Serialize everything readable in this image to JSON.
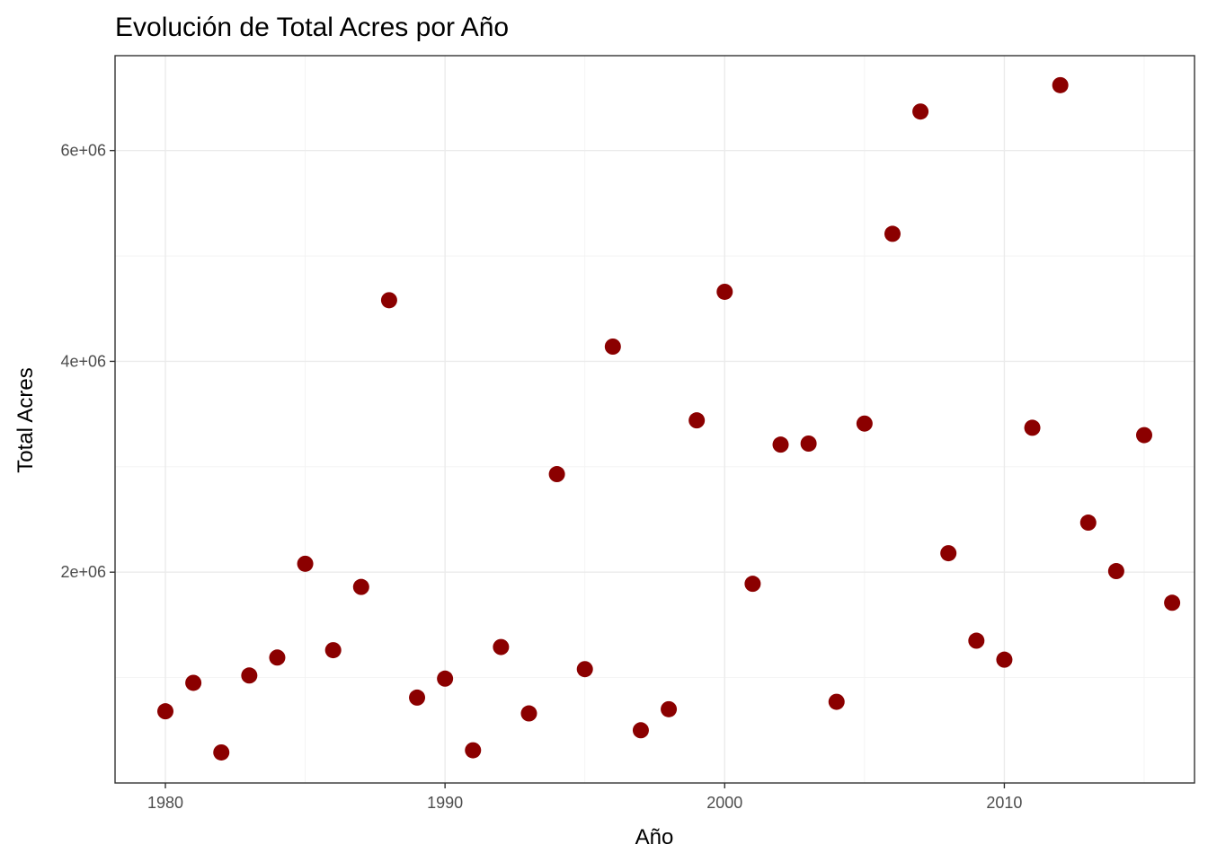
{
  "chart_data": {
    "type": "scatter",
    "title": "Evolución de Total Acres por Año",
    "xlabel": "Año",
    "ylabel": "Total Acres",
    "xlim": [
      1978.2,
      2016.8
    ],
    "ylim": [
      0,
      6900000
    ],
    "x_ticks": [
      1980,
      1990,
      2000,
      2010
    ],
    "x_tick_labels": [
      "1980",
      "1990",
      "2000",
      "2010"
    ],
    "y_ticks": [
      2000000,
      4000000,
      6000000
    ],
    "y_tick_labels": [
      "2e+06",
      "4e+06",
      "6e+06"
    ],
    "grid": true,
    "legend": "none",
    "point_color": "#8b0000",
    "series": [
      {
        "x": [
          1980,
          1981,
          1982,
          1983,
          1984,
          1985,
          1986,
          1987,
          1988,
          1989,
          1990,
          1991,
          1992,
          1993,
          1994,
          1995,
          1996,
          1997,
          1998,
          1999,
          2000,
          2001,
          2002,
          2003,
          2004,
          2005,
          2006,
          2007,
          2008,
          2009,
          2010,
          2011,
          2012,
          2013,
          2014,
          2015,
          2016
        ],
        "values": [
          680000,
          950000,
          290000,
          1020000,
          1190000,
          2080000,
          1260000,
          1860000,
          4580000,
          810000,
          990000,
          310000,
          1290000,
          660000,
          2930000,
          1080000,
          4140000,
          500000,
          700000,
          3440000,
          4660000,
          1890000,
          3210000,
          3220000,
          770000,
          3410000,
          5210000,
          6370000,
          2180000,
          1350000,
          1170000,
          3370000,
          6620000,
          2470000,
          2010000,
          3300000,
          1710000
        ]
      }
    ]
  }
}
